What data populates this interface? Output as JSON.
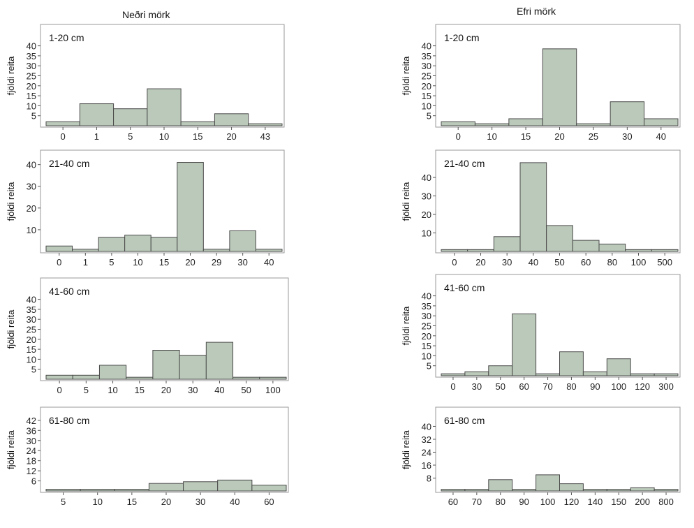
{
  "headers": {
    "left": "Neðri mörk",
    "right": "Efri mörk"
  },
  "style": {
    "bar_fill": "#bac9b9",
    "bar_stroke": "#4a4a4a",
    "frame_stroke": "#999999"
  },
  "chart_data": [
    {
      "type": "bar",
      "title": "1-20 cm",
      "ylabel": "fjöldi reita",
      "categories": [
        "0",
        "1",
        "5",
        "10",
        "15",
        "20",
        "43"
      ],
      "values": [
        2,
        11,
        8.5,
        18.5,
        2,
        6,
        1
      ],
      "yticks": [
        5,
        10,
        15,
        20,
        25,
        30,
        35,
        40
      ],
      "ylim": [
        0,
        50
      ]
    },
    {
      "type": "bar",
      "title": "1-20 cm",
      "ylabel": "fjöldi reita",
      "categories": [
        "0",
        "10",
        "15",
        "20",
        "25",
        "30",
        "40"
      ],
      "values": [
        2,
        1,
        3.5,
        38.5,
        1,
        12,
        3.5
      ],
      "yticks": [
        5,
        10,
        15,
        20,
        25,
        30,
        35,
        40
      ],
      "ylim": [
        0,
        50
      ]
    },
    {
      "type": "bar",
      "title": "21-40 cm",
      "ylabel": "fjöldi reita",
      "categories": [
        "0",
        "1",
        "5",
        "10",
        "15",
        "20",
        "29",
        "30",
        "40"
      ],
      "values": [
        2.5,
        1,
        6.5,
        7.5,
        6.5,
        41,
        1,
        9.5,
        1
      ],
      "yticks": [
        10,
        20,
        30,
        40
      ],
      "ylim": [
        0,
        46
      ]
    },
    {
      "type": "bar",
      "title": "21-40 cm",
      "ylabel": "fjöldi reita",
      "categories": [
        "0",
        "20",
        "30",
        "40",
        "50",
        "60",
        "80",
        "100",
        "500"
      ],
      "values": [
        1,
        1,
        8,
        48,
        14,
        6,
        4,
        1,
        1
      ],
      "yticks": [
        10,
        20,
        30,
        40
      ],
      "ylim": [
        0,
        54
      ]
    },
    {
      "type": "bar",
      "title": "41-60 cm",
      "ylabel": "fjöldi reita",
      "categories": [
        "0",
        "5",
        "10",
        "15",
        "20",
        "30",
        "40",
        "50",
        "100"
      ],
      "values": [
        2,
        2,
        7,
        1,
        14.5,
        12,
        18.5,
        1,
        1
      ],
      "yticks": [
        5,
        10,
        15,
        20,
        25,
        30,
        35,
        40
      ],
      "ylim": [
        0,
        50
      ]
    },
    {
      "type": "bar",
      "title": "41-60 cm",
      "ylabel": "fjöldi reita",
      "categories": [
        "0",
        "30",
        "50",
        "60",
        "70",
        "80",
        "90",
        "100",
        "120",
        "300"
      ],
      "values": [
        1,
        2,
        5,
        31,
        1,
        12,
        2,
        8.5,
        1,
        1
      ],
      "yticks": [
        5,
        10,
        15,
        20,
        25,
        30,
        35,
        40
      ],
      "ylim": [
        0,
        50
      ]
    },
    {
      "type": "bar",
      "title": "61-80 cm",
      "ylabel": "fjöldi reita",
      "categories": [
        "5",
        "10",
        "15",
        "20",
        "30",
        "40",
        "60"
      ],
      "values": [
        1,
        1,
        1,
        4.5,
        5.5,
        6.5,
        3.5
      ],
      "yticks": [
        6,
        12,
        18,
        24,
        30,
        36,
        42
      ],
      "ylim": [
        0,
        49
      ]
    },
    {
      "type": "bar",
      "title": "61-80 cm",
      "ylabel": "fjöldi reita",
      "categories": [
        "60",
        "70",
        "80",
        "90",
        "100",
        "120",
        "140",
        "150",
        "200",
        "800"
      ],
      "values": [
        1,
        1,
        7,
        1,
        10,
        4.5,
        1,
        1,
        2,
        1
      ],
      "yticks": [
        8,
        16,
        24,
        32,
        40
      ],
      "ylim": [
        0,
        51
      ]
    }
  ]
}
